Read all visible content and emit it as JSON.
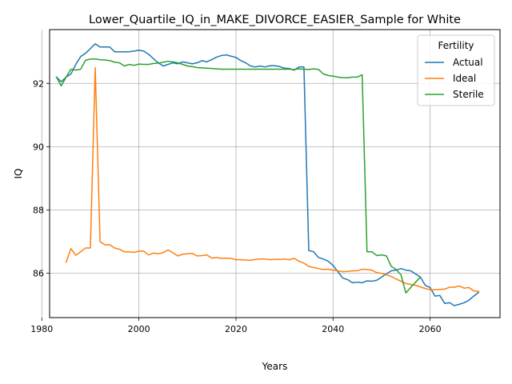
{
  "chart_data": {
    "type": "line",
    "title": "Lower_Quartile_IQ_in_MAKE_DIVORCE_EASIER_Sample for White",
    "xlabel": "Years",
    "ylabel": "IQ",
    "xlim": [
      1981.6,
      2074.4
    ],
    "ylim": [
      84.6,
      93.7
    ],
    "xticks": [
      1980,
      2000,
      2020,
      2040,
      2060
    ],
    "yticks": [
      86,
      88,
      90,
      92
    ],
    "grid": true,
    "legend": {
      "title": "Fertility",
      "position": "top-right"
    },
    "series": [
      {
        "name": "Actual",
        "color": "#1f77b4",
        "points": [
          [
            1983,
            92.2
          ],
          [
            1984,
            92.05
          ],
          [
            1985,
            92.2
          ],
          [
            1986,
            92.3
          ],
          [
            1987,
            92.6
          ],
          [
            1988,
            92.85
          ],
          [
            1989,
            92.95
          ],
          [
            1990,
            93.1
          ],
          [
            1991,
            93.25
          ],
          [
            1992,
            93.15
          ],
          [
            1993,
            93.15
          ],
          [
            1994,
            93.15
          ],
          [
            1995,
            93.0
          ],
          [
            1996,
            93.0
          ],
          [
            1997,
            93.0
          ],
          [
            1998,
            93.0
          ],
          [
            1999,
            93.02
          ],
          [
            2000,
            93.05
          ],
          [
            2001,
            93.02
          ],
          [
            2002,
            92.92
          ],
          [
            2003,
            92.78
          ],
          [
            2004,
            92.65
          ],
          [
            2005,
            92.55
          ],
          [
            2006,
            92.6
          ],
          [
            2007,
            92.65
          ],
          [
            2008,
            92.62
          ],
          [
            2009,
            92.68
          ],
          [
            2010,
            92.65
          ],
          [
            2011,
            92.62
          ],
          [
            2012,
            92.65
          ],
          [
            2013,
            92.72
          ],
          [
            2014,
            92.68
          ],
          [
            2015,
            92.75
          ],
          [
            2016,
            92.83
          ],
          [
            2017,
            92.88
          ],
          [
            2018,
            92.9
          ],
          [
            2019,
            92.86
          ],
          [
            2020,
            92.82
          ],
          [
            2021,
            92.72
          ],
          [
            2022,
            92.65
          ],
          [
            2023,
            92.55
          ],
          [
            2024,
            92.52
          ],
          [
            2025,
            92.55
          ],
          [
            2026,
            92.52
          ],
          [
            2027,
            92.56
          ],
          [
            2028,
            92.56
          ],
          [
            2029,
            92.53
          ],
          [
            2030,
            92.48
          ],
          [
            2031,
            92.47
          ],
          [
            2032,
            92.42
          ],
          [
            2033,
            92.52
          ],
          [
            2034,
            92.52
          ],
          [
            2035,
            86.72
          ],
          [
            2036,
            86.68
          ],
          [
            2037,
            86.5
          ],
          [
            2038,
            86.45
          ],
          [
            2039,
            86.38
          ],
          [
            2040,
            86.25
          ],
          [
            2041,
            86.05
          ],
          [
            2042,
            85.85
          ],
          [
            2043,
            85.8
          ],
          [
            2044,
            85.7
          ],
          [
            2045,
            85.72
          ],
          [
            2046,
            85.7
          ],
          [
            2047,
            85.76
          ],
          [
            2048,
            85.75
          ],
          [
            2049,
            85.78
          ],
          [
            2050,
            85.88
          ],
          [
            2051,
            85.98
          ],
          [
            2052,
            86.08
          ],
          [
            2053,
            86.1
          ],
          [
            2054,
            86.15
          ],
          [
            2055,
            86.1
          ],
          [
            2056,
            86.08
          ],
          [
            2057,
            85.98
          ],
          [
            2058,
            85.88
          ],
          [
            2059,
            85.62
          ],
          [
            2060,
            85.55
          ],
          [
            2061,
            85.28
          ],
          [
            2062,
            85.3
          ],
          [
            2063,
            85.05
          ],
          [
            2064,
            85.07
          ],
          [
            2065,
            84.98
          ],
          [
            2066,
            85.02
          ],
          [
            2067,
            85.07
          ],
          [
            2068,
            85.15
          ],
          [
            2069,
            85.28
          ],
          [
            2070,
            85.4
          ]
        ]
      },
      {
        "name": "Ideal",
        "color": "#ff7f0e",
        "points": [
          [
            1985,
            86.35
          ],
          [
            1986,
            86.78
          ],
          [
            1987,
            86.57
          ],
          [
            1988,
            86.68
          ],
          [
            1989,
            86.8
          ],
          [
            1990,
            86.8
          ],
          [
            1991,
            92.5
          ],
          [
            1992,
            87.0
          ],
          [
            1993,
            86.9
          ],
          [
            1994,
            86.9
          ],
          [
            1995,
            86.8
          ],
          [
            1996,
            86.76
          ],
          [
            1997,
            86.68
          ],
          [
            1998,
            86.68
          ],
          [
            1999,
            86.66
          ],
          [
            2000,
            86.7
          ],
          [
            2001,
            86.7
          ],
          [
            2002,
            86.58
          ],
          [
            2003,
            86.64
          ],
          [
            2004,
            86.62
          ],
          [
            2005,
            86.65
          ],
          [
            2006,
            86.74
          ],
          [
            2007,
            86.65
          ],
          [
            2008,
            86.55
          ],
          [
            2009,
            86.6
          ],
          [
            2010,
            86.62
          ],
          [
            2011,
            86.63
          ],
          [
            2012,
            86.55
          ],
          [
            2013,
            86.56
          ],
          [
            2014,
            86.58
          ],
          [
            2015,
            86.48
          ],
          [
            2016,
            86.5
          ],
          [
            2017,
            86.47
          ],
          [
            2018,
            86.48
          ],
          [
            2019,
            86.47
          ],
          [
            2020,
            86.43
          ],
          [
            2021,
            86.43
          ],
          [
            2022,
            86.42
          ],
          [
            2023,
            86.41
          ],
          [
            2024,
            86.44
          ],
          [
            2025,
            86.45
          ],
          [
            2026,
            86.45
          ],
          [
            2027,
            86.43
          ],
          [
            2028,
            86.44
          ],
          [
            2029,
            86.44
          ],
          [
            2030,
            86.45
          ],
          [
            2031,
            86.43
          ],
          [
            2032,
            86.47
          ],
          [
            2033,
            86.38
          ],
          [
            2034,
            86.32
          ],
          [
            2035,
            86.22
          ],
          [
            2036,
            86.18
          ],
          [
            2037,
            86.15
          ],
          [
            2038,
            86.12
          ],
          [
            2039,
            86.13
          ],
          [
            2040,
            86.1
          ],
          [
            2041,
            86.08
          ],
          [
            2042,
            86.05
          ],
          [
            2043,
            86.06
          ],
          [
            2044,
            86.08
          ],
          [
            2045,
            86.08
          ],
          [
            2046,
            86.13
          ],
          [
            2047,
            86.12
          ],
          [
            2048,
            86.1
          ],
          [
            2049,
            86.02
          ],
          [
            2050,
            86.0
          ],
          [
            2051,
            85.95
          ],
          [
            2052,
            85.9
          ],
          [
            2053,
            85.82
          ],
          [
            2054,
            85.75
          ],
          [
            2055,
            85.68
          ],
          [
            2056,
            85.65
          ],
          [
            2057,
            85.62
          ],
          [
            2058,
            85.57
          ],
          [
            2059,
            85.52
          ],
          [
            2060,
            85.48
          ],
          [
            2061,
            85.48
          ],
          [
            2062,
            85.49
          ],
          [
            2063,
            85.5
          ],
          [
            2064,
            85.56
          ],
          [
            2065,
            85.56
          ],
          [
            2066,
            85.6
          ],
          [
            2067,
            85.53
          ],
          [
            2068,
            85.55
          ],
          [
            2069,
            85.44
          ],
          [
            2070,
            85.43
          ]
        ]
      },
      {
        "name": "Sterile",
        "color": "#2ca02c",
        "points": [
          [
            1983,
            92.2
          ],
          [
            1984,
            91.92
          ],
          [
            1985,
            92.2
          ],
          [
            1986,
            92.45
          ],
          [
            1987,
            92.42
          ],
          [
            1988,
            92.45
          ],
          [
            1989,
            92.73
          ],
          [
            1990,
            92.77
          ],
          [
            1991,
            92.77
          ],
          [
            1992,
            92.75
          ],
          [
            1993,
            92.74
          ],
          [
            1994,
            92.72
          ],
          [
            1995,
            92.67
          ],
          [
            1996,
            92.65
          ],
          [
            1997,
            92.55
          ],
          [
            1998,
            92.6
          ],
          [
            1999,
            92.57
          ],
          [
            2000,
            92.61
          ],
          [
            2001,
            92.6
          ],
          [
            2002,
            92.6
          ],
          [
            2003,
            92.63
          ],
          [
            2004,
            92.64
          ],
          [
            2005,
            92.67
          ],
          [
            2006,
            92.7
          ],
          [
            2007,
            92.68
          ],
          [
            2008,
            92.65
          ],
          [
            2009,
            92.6
          ],
          [
            2010,
            92.55
          ],
          [
            2011,
            92.53
          ],
          [
            2012,
            92.5
          ],
          [
            2013,
            92.49
          ],
          [
            2014,
            92.48
          ],
          [
            2015,
            92.47
          ],
          [
            2016,
            92.46
          ],
          [
            2017,
            92.45
          ],
          [
            2018,
            92.45
          ],
          [
            2019,
            92.45
          ],
          [
            2020,
            92.45
          ],
          [
            2021,
            92.45
          ],
          [
            2022,
            92.45
          ],
          [
            2023,
            92.45
          ],
          [
            2024,
            92.45
          ],
          [
            2025,
            92.45
          ],
          [
            2026,
            92.45
          ],
          [
            2027,
            92.45
          ],
          [
            2028,
            92.45
          ],
          [
            2029,
            92.45
          ],
          [
            2030,
            92.45
          ],
          [
            2031,
            92.45
          ],
          [
            2032,
            92.44
          ],
          [
            2033,
            92.46
          ],
          [
            2034,
            92.45
          ],
          [
            2035,
            92.44
          ],
          [
            2036,
            92.46
          ],
          [
            2037,
            92.44
          ],
          [
            2038,
            92.3
          ],
          [
            2039,
            92.25
          ],
          [
            2040,
            92.23
          ],
          [
            2041,
            92.2
          ],
          [
            2042,
            92.18
          ],
          [
            2043,
            92.18
          ],
          [
            2044,
            92.2
          ],
          [
            2045,
            92.2
          ],
          [
            2046,
            92.27
          ],
          [
            2047,
            86.68
          ],
          [
            2048,
            86.68
          ],
          [
            2049,
            86.56
          ],
          [
            2050,
            86.58
          ],
          [
            2051,
            86.55
          ],
          [
            2052,
            86.22
          ],
          [
            2053,
            86.12
          ],
          [
            2054,
            85.95
          ],
          [
            2055,
            85.38
          ],
          [
            2056,
            85.55
          ],
          [
            2057,
            85.72
          ],
          [
            2058,
            85.88
          ]
        ]
      }
    ]
  }
}
